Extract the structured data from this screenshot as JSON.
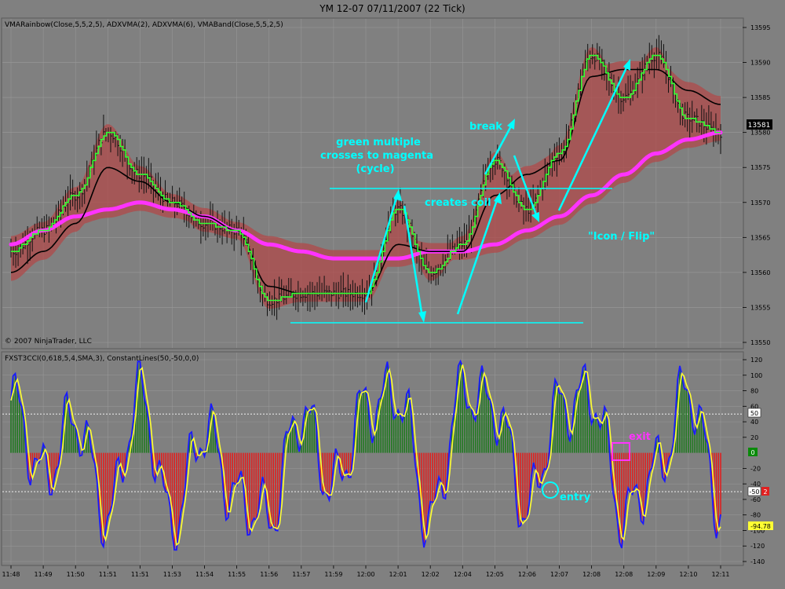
{
  "window_title": "YM 12-07  07/11/2007  (22 Tick)",
  "copyright": "© 2007 NinjaTrader, LLC",
  "price_panel": {
    "indicator_label": "VMARainbow(Close,5,5,2,5), ADXVMA(2), ADXVMA(6), VMABand(Close,5,5,2,5)",
    "last_price_label": "13581",
    "y_ticks": [
      "13595",
      "13590",
      "13585",
      "13580",
      "13575",
      "13570",
      "13565",
      "13560",
      "13555",
      "13550"
    ],
    "annotations": {
      "green_multiple": [
        "green multiple",
        "crosses to magenta",
        "(cycle)"
      ],
      "creates_coil": "creates coil",
      "break": "break",
      "icon_flip": "\"Icon / Flip\""
    }
  },
  "osc_panel": {
    "indicator_label": "FXST3CCI(0,618,5,4,SMA,3), ConstantLines(50,-50,0,0)",
    "y_ticks": [
      "120",
      "100",
      "80",
      "60",
      "40",
      "20",
      "-20",
      "-40",
      "-60",
      "-80",
      "-100",
      "-120",
      "-140"
    ],
    "badges": {
      "plus50": "50",
      "zero": "0",
      "minus50": "-50",
      "minus2": "2",
      "last": "-94.78"
    },
    "annotations": {
      "exit": "exit",
      "entry": "entry"
    }
  },
  "x_ticks": [
    "11:48",
    "11:49",
    "11:50",
    "11:51",
    "11:51",
    "11:53",
    "11:54",
    "11:55",
    "11:56",
    "11:57",
    "11:59",
    "12:00",
    "12:01",
    "12:02",
    "12:04",
    "12:05",
    "12:06",
    "12:07",
    "12:08",
    "12:08",
    "12:09",
    "12:10",
    "12:11"
  ],
  "colors": {
    "background": "#808080",
    "grid": "#9a9a9a",
    "bars": "#111111",
    "green_line": "#33ff33",
    "black_line": "#000000",
    "magenta": "#ff33ff",
    "band": "#b04a4a",
    "cyan": "#00ffff",
    "cci_up": "#1f7a1f",
    "cci_down": "#e02020",
    "cci_blue": "#1a1aff",
    "cci_yellow": "#ffff33"
  },
  "chart_data": {
    "type": "line",
    "panels": [
      {
        "name": "price",
        "ylim": [
          13550,
          13595
        ],
        "x": [
          "11:48",
          "11:49",
          "11:50",
          "11:51",
          "11:51",
          "11:53",
          "11:54",
          "11:55",
          "11:56",
          "11:57",
          "11:59",
          "12:00",
          "12:01",
          "12:02",
          "12:04",
          "12:05",
          "12:06",
          "12:07",
          "12:08",
          "12:08",
          "12:09",
          "12:10",
          "12:11"
        ],
        "series": [
          {
            "values": [
              13563,
              13566,
              13571,
              13580,
              13574,
              13570,
              13567,
              13566,
              13556,
              13557,
              13557,
              13557,
              13569,
              13560,
              13564,
              13576,
              13569,
              13577,
              13591,
              13585,
              13591,
              13582,
              13580
            ]
          },
          {
            "values": [
              13560,
              13563,
              13567,
              13575,
              13573,
              13570,
              13568,
              13566,
              13558,
              13557,
              13557,
              13557,
              13564,
              13563,
              13563,
              13571,
              13574,
              13576,
              13588,
              13589,
              13589,
              13586,
              13584
            ]
          },
          {
            "values": [
              13564,
              13566,
              13568,
              13569,
              13570,
              13569,
              13568,
              13566,
              13564,
              13563,
              13562,
              13562,
              13562,
              13563,
              13563,
              13564,
              13566,
              13568,
              13571,
              13574,
              13577,
              13579,
              13580
            ]
          }
        ]
      },
      {
        "name": "oscillator",
        "ylim": [
          -140,
          120
        ],
        "constant_lines": [
          50,
          -50,
          0
        ],
        "x": [
          "11:48",
          "11:49",
          "11:50",
          "11:51",
          "11:51",
          "11:53",
          "11:54",
          "11:55",
          "11:56",
          "11:57",
          "11:59",
          "12:00",
          "12:01",
          "12:02",
          "12:04",
          "12:05",
          "12:06",
          "12:07",
          "12:08",
          "12:08",
          "12:09",
          "12:10",
          "12:11"
        ],
        "series": [
          {
            "values": [
              90,
              -40,
              60,
              -110,
              100,
              -120,
              40,
              -80,
              -110,
              70,
              -60,
              80,
              100,
              -120,
              110,
              80,
              -100,
              80,
              100,
              -110,
              -30,
              110,
              -95
            ]
          }
        ]
      }
    ]
  }
}
